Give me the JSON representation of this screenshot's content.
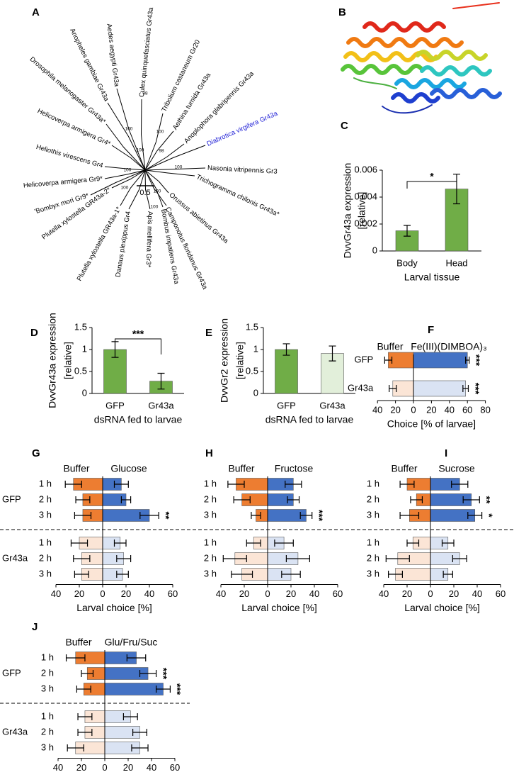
{
  "tree": {
    "label": "A",
    "leaves": [
      {
        "name": "Culex quinquefasciatus Gr43a"
      },
      {
        "name": "Tribolium castaneum Gr20"
      },
      {
        "name": "Aethina tumida Gr43a"
      },
      {
        "name": "Anoplophora glabripennis Gr43a"
      },
      {
        "name": "Diabrotica virgifera Gr43a",
        "color": "#1f1fd6"
      },
      {
        "name": "Nasonia vitripennis Gr3"
      },
      {
        "name": "Trichogramma chilonis Gr43a*"
      },
      {
        "name": "Orussus abietinus Gr43a"
      },
      {
        "name": "Camponotus floridanus Gr43a"
      },
      {
        "name": "Bombus impatiens Gr43a"
      },
      {
        "name": "Apis mellifera Gr3*"
      },
      {
        "name": "Danaus plexippus Gr4"
      },
      {
        "name": "Plutella xylostella GR43a-1*"
      },
      {
        "name": "Plutella xylostella GR43a-2*"
      },
      {
        "name": "'Bombyx mori Gr9*"
      },
      {
        "name": "Helicoverpa armigera Gr9*"
      },
      {
        "name": "Heliothis virescens Gr4"
      },
      {
        "name": "Helicoverpa armigera Gr4*"
      },
      {
        "name": "Drosophila melanogaster Gr43a*"
      },
      {
        "name": "Anopheles gambiae Gr43a"
      },
      {
        "name": "Aedes aegypti Gr43a"
      }
    ],
    "support": [
      98,
      100,
      100,
      98,
      100,
      100,
      100,
      100,
      100,
      100
    ],
    "scale_bar": 0.5
  },
  "structure": {
    "label": "B"
  },
  "chart_data": [
    {
      "type": "bar",
      "label": "C",
      "ylabel": [
        "DvvGr43a expression",
        "[relative]"
      ],
      "xlabel": "Larval tissue",
      "categories": [
        "Body",
        "Head"
      ],
      "values": [
        0.0015,
        0.0046
      ],
      "errors": [
        0.0004,
        0.0011
      ],
      "colors": [
        "#70ad47",
        "#70ad47"
      ],
      "ylim": [
        0,
        0.006
      ],
      "yticks": [
        0,
        0.002,
        0.004,
        0.006
      ],
      "significance": "*"
    },
    {
      "type": "bar",
      "label": "D",
      "ylabel": [
        "DvvGr43a expression",
        "[relative]"
      ],
      "xlabel": "dsRNA fed to larvae",
      "categories": [
        "GFP",
        "Gr43a"
      ],
      "values": [
        1.0,
        0.28
      ],
      "errors": [
        0.18,
        0.18
      ],
      "colors": [
        "#70ad47",
        "#70ad47"
      ],
      "ylim": [
        0,
        1.5
      ],
      "yticks": [
        0,
        0.5,
        1,
        1.5
      ],
      "significance": "***"
    },
    {
      "type": "bar",
      "label": "E",
      "ylabel": [
        "DvvGr2 expression",
        "[relative]"
      ],
      "xlabel": "dsRNA fed to larvae",
      "categories": [
        "GFP",
        "Gr43a"
      ],
      "values": [
        1.0,
        0.91
      ],
      "errors": [
        0.13,
        0.17
      ],
      "colors": [
        "#70ad47",
        "#e2efda"
      ],
      "ylim": [
        0,
        1.5
      ],
      "yticks": [
        0,
        0.5,
        1,
        1.5
      ]
    },
    {
      "type": "diverging",
      "label": "F",
      "xlabel": "Choice [% of larvae]",
      "categories": [
        "GFP",
        "Gr43a"
      ],
      "series": [
        {
          "name": "Buffer",
          "colors": [
            "#ed7d31",
            "#fbe5d6"
          ],
          "values": [
            28,
            23
          ],
          "errors": [
            4,
            4
          ]
        },
        {
          "name": "Fe(III)(DIMBOA)₃",
          "colors": [
            "#4472c4",
            "#dae3f3"
          ],
          "values": [
            60,
            58
          ],
          "errors": [
            2,
            3
          ]
        }
      ],
      "significance": [
        "***",
        "***"
      ],
      "xlim": [
        -40,
        80
      ],
      "xticks": [
        {
          "value": -40,
          "label": "40"
        },
        {
          "value": -20,
          "label": "20"
        },
        0,
        20,
        40,
        60,
        80
      ]
    },
    {
      "type": "diverging",
      "label": "G",
      "xlabel": "Larval choice [%]",
      "categories": [
        "1 h",
        "2 h",
        "3 h",
        "1 h",
        "2 h",
        "3 h"
      ],
      "groups": [
        {
          "name": "GFP"
        },
        {
          "name": "Gr43a"
        }
      ],
      "series": [
        {
          "name": "Buffer",
          "colors": [
            "#ed7d31",
            "#ed7d31",
            "#ed7d31",
            "#fbe5d6",
            "#fbe5d6",
            "#fbe5d6"
          ],
          "values": [
            25,
            17,
            17,
            20,
            18,
            18
          ],
          "errors": [
            7,
            6,
            7,
            7,
            7,
            6
          ]
        },
        {
          "name": "Glucose",
          "colors": [
            "#4472c4",
            "#4472c4",
            "#4472c4",
            "#dae3f3",
            "#dae3f3",
            "#dae3f3"
          ],
          "values": [
            16,
            20,
            40,
            15,
            18,
            17
          ],
          "errors": [
            6,
            4,
            8,
            5,
            6,
            5
          ]
        }
      ],
      "significance": [
        null,
        null,
        "**",
        null,
        null,
        null
      ],
      "xlim": [
        -40,
        60
      ],
      "xticks": [
        {
          "value": -40,
          "label": "40"
        },
        {
          "value": -20,
          "label": "20"
        },
        0,
        20,
        40,
        60
      ]
    },
    {
      "type": "diverging",
      "label": "H",
      "xlabel": "Larval choice [%]",
      "categories": [
        "1 h",
        "2 h",
        "3 h",
        "1 h",
        "2 h",
        "3 h"
      ],
      "series": [
        {
          "name": "Buffer",
          "colors": [
            "#ed7d31",
            "#ed7d31",
            "#ed7d31",
            "#fbe5d6",
            "#fbe5d6",
            "#fbe5d6"
          ],
          "values": [
            27,
            22,
            10,
            12,
            28,
            22
          ],
          "errors": [
            7,
            7,
            4,
            6,
            10,
            9
          ]
        },
        {
          "name": "Fructose",
          "colors": [
            "#4472c4",
            "#4472c4",
            "#4472c4",
            "#dae3f3",
            "#dae3f3",
            "#dae3f3"
          ],
          "values": [
            22,
            22,
            33,
            14,
            26,
            20
          ],
          "errors": [
            7,
            5,
            5,
            8,
            10,
            8
          ]
        }
      ],
      "significance": [
        null,
        null,
        "***",
        null,
        null,
        null
      ],
      "xlim": [
        -40,
        60
      ],
      "xticks": [
        {
          "value": -40,
          "label": "40"
        },
        {
          "value": -20,
          "label": "20"
        },
        0,
        20,
        40,
        60
      ]
    },
    {
      "type": "diverging",
      "label": "I",
      "xlabel": "Larval choice [%]",
      "categories": [
        "1 h",
        "2 h",
        "3 h",
        "1 h",
        "2 h",
        "3 h"
      ],
      "series": [
        {
          "name": "Buffer",
          "colors": [
            "#ed7d31",
            "#ed7d31",
            "#ed7d31",
            "#fbe5d6",
            "#fbe5d6",
            "#fbe5d6"
          ],
          "values": [
            20,
            12,
            18,
            15,
            28,
            30
          ],
          "errors": [
            6,
            5,
            8,
            5,
            10,
            6
          ]
        },
        {
          "name": "Sucrose",
          "colors": [
            "#4472c4",
            "#4472c4",
            "#4472c4",
            "#dae3f3",
            "#dae3f3",
            "#dae3f3"
          ],
          "values": [
            25,
            35,
            38,
            15,
            25,
            15
          ],
          "errors": [
            7,
            7,
            6,
            5,
            6,
            4
          ]
        }
      ],
      "significance": [
        null,
        "**",
        "*",
        null,
        null,
        null
      ],
      "xlim": [
        -40,
        60
      ],
      "xticks": [
        {
          "value": -40,
          "label": "40"
        },
        {
          "value": -20,
          "label": "20"
        },
        0,
        20,
        40,
        60
      ]
    },
    {
      "type": "diverging",
      "label": "J",
      "xlabel": "Larval choice [%]",
      "categories": [
        "1 h",
        "2 h",
        "3 h",
        "1 h",
        "2 h",
        "3 h"
      ],
      "groups": [
        {
          "name": "GFP"
        },
        {
          "name": "Gr43a"
        }
      ],
      "series": [
        {
          "name": "Buffer",
          "colors": [
            "#ed7d31",
            "#ed7d31",
            "#ed7d31",
            "#fbe5d6",
            "#fbe5d6",
            "#fbe5d6"
          ],
          "values": [
            25,
            15,
            18,
            17,
            17,
            25
          ],
          "errors": [
            8,
            5,
            6,
            6,
            6,
            7
          ]
        },
        {
          "name": "Glu/Fru/Suc",
          "colors": [
            "#4472c4",
            "#4472c4",
            "#4472c4",
            "#dae3f3",
            "#dae3f3",
            "#dae3f3"
          ],
          "values": [
            27,
            37,
            50,
            22,
            30,
            30
          ],
          "errors": [
            8,
            7,
            6,
            6,
            6,
            7
          ]
        }
      ],
      "significance": [
        null,
        "***",
        "***",
        null,
        null,
        null
      ],
      "xlim": [
        -40,
        60
      ],
      "xticks": [
        {
          "value": -40,
          "label": "40"
        },
        {
          "value": -20,
          "label": "20"
        },
        0,
        20,
        40,
        60
      ]
    }
  ]
}
